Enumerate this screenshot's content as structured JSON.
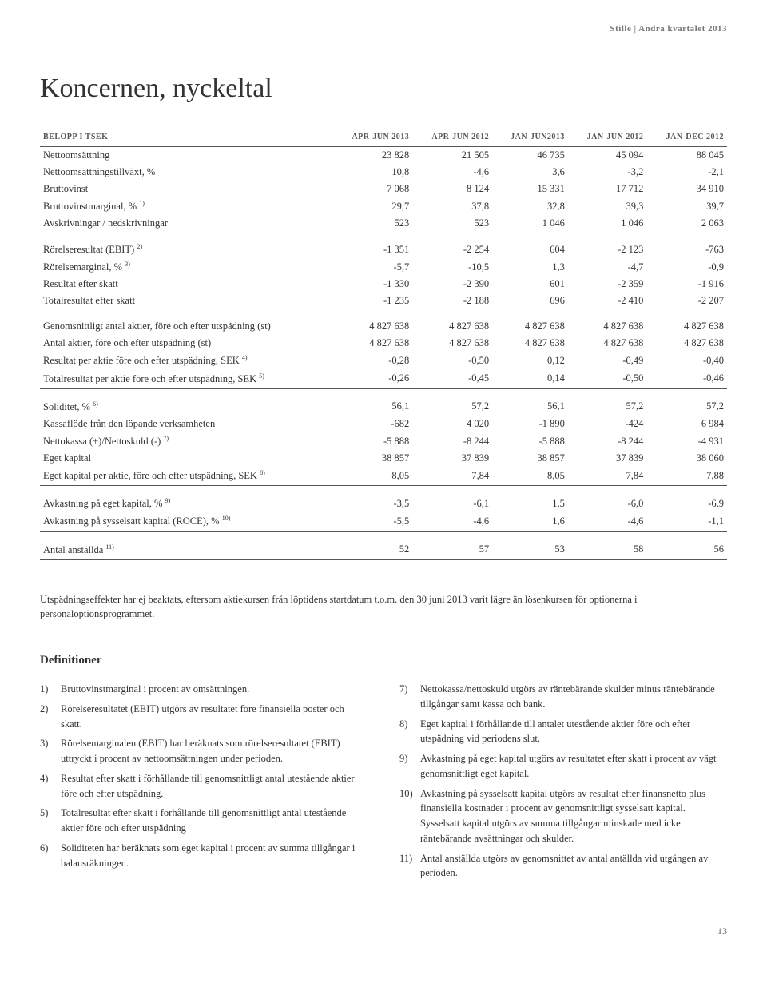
{
  "header": "Stille | Andra kvartalet 2013",
  "title": "Koncernen, nyckeltal",
  "columns": [
    "BELOPP I TSEK",
    "APR-JUN 2013",
    "APR-JUN 2012",
    "JAN-JUN2013",
    "JAN-JUN 2012",
    "JAN-DEC 2012"
  ],
  "rows": [
    {
      "label": "Nettoomsättning",
      "sup": "",
      "v": [
        "23 828",
        "21 505",
        "46 735",
        "45 094",
        "88 045"
      ]
    },
    {
      "label": "Nettoomsättningstillväxt, %",
      "sup": "",
      "v": [
        "10,8",
        "-4,6",
        "3,6",
        "-3,2",
        "-2,1"
      ]
    },
    {
      "label": "Bruttovinst",
      "sup": "",
      "v": [
        "7 068",
        "8 124",
        "15 331",
        "17 712",
        "34 910"
      ]
    },
    {
      "label": "Bruttovinstmarginal, %",
      "sup": "1)",
      "v": [
        "29,7",
        "37,8",
        "32,8",
        "39,3",
        "39,7"
      ]
    },
    {
      "label": "Avskrivningar / nedskrivningar",
      "sup": "",
      "v": [
        "523",
        "523",
        "1 046",
        "1 046",
        "2 063"
      ]
    },
    {
      "label": "Rörelseresultat (EBIT)",
      "sup": "2)",
      "v": [
        "-1 351",
        "-2 254",
        "604",
        "-2 123",
        "-763"
      ],
      "spacer": true
    },
    {
      "label": "Rörelsemarginal, %",
      "sup": "3)",
      "v": [
        "-5,7",
        "-10,5",
        "1,3",
        "-4,7",
        "-0,9"
      ]
    },
    {
      "label": "Resultat efter skatt",
      "sup": "",
      "v": [
        "-1 330",
        "-2 390",
        "601",
        "-2 359",
        "-1 916"
      ]
    },
    {
      "label": "Totalresultat efter skatt",
      "sup": "",
      "v": [
        "-1 235",
        "-2 188",
        "696",
        "-2 410",
        "-2 207"
      ]
    },
    {
      "label": "Genomsnittligt antal aktier, före och efter utspädning (st)",
      "sup": "",
      "v": [
        "4 827 638",
        "4 827 638",
        "4 827 638",
        "4 827 638",
        "4 827 638"
      ],
      "spacer": true
    },
    {
      "label": "Antal aktier, före och efter utspädning (st)",
      "sup": "",
      "v": [
        "4 827 638",
        "4 827 638",
        "4 827 638",
        "4 827 638",
        "4 827 638"
      ]
    },
    {
      "label": "Resultat per aktie före och efter utspädning, SEK",
      "sup": "4)",
      "v": [
        "-0,28",
        "-0,50",
        "0,12",
        "-0,49",
        "-0,40"
      ]
    },
    {
      "label": "Totalresultat per aktie före och efter utspädning, SEK",
      "sup": "5)",
      "v": [
        "-0,26",
        "-0,45",
        "0,14",
        "-0,50",
        "-0,46"
      ],
      "bb": true
    },
    {
      "label": "Soliditet, %",
      "sup": "6)",
      "v": [
        "56,1",
        "57,2",
        "56,1",
        "57,2",
        "57,2"
      ],
      "spacer": true
    },
    {
      "label": "Kassaflöde från den löpande verksamheten",
      "sup": "",
      "v": [
        "-682",
        "4 020",
        "-1 890",
        "-424",
        "6 984"
      ]
    },
    {
      "label": "Nettokassa (+)/Nettoskuld (-)",
      "sup": "7)",
      "v": [
        "-5 888",
        "-8 244",
        "-5 888",
        "-8 244",
        "-4 931"
      ]
    },
    {
      "label": "Eget kapital",
      "sup": "",
      "v": [
        "38 857",
        "37 839",
        "38 857",
        "37 839",
        "38 060"
      ]
    },
    {
      "label": "Eget kapital per aktie, före och efter utspädning, SEK",
      "sup": "8)",
      "v": [
        "8,05",
        "7,84",
        "8,05",
        "7,84",
        "7,88"
      ],
      "bb": true
    },
    {
      "label": "Avkastning på eget kapital, %",
      "sup": "9)",
      "v": [
        "-3,5",
        "-6,1",
        "1,5",
        "-6,0",
        "-6,9"
      ],
      "spacer": true
    },
    {
      "label": "Avkastning på sysselsatt kapital (ROCE), %",
      "sup": "10)",
      "v": [
        "-5,5",
        "-4,6",
        "1,6",
        "-4,6",
        "-1,1"
      ],
      "bb": true
    },
    {
      "label": "Antal anställda",
      "sup": "11)",
      "v": [
        "52",
        "57",
        "53",
        "58",
        "56"
      ],
      "spacer": true,
      "bb": true
    }
  ],
  "note": "Utspädningseffekter har ej beaktats, eftersom aktiekursen från löptidens startdatum t.o.m. den 30 juni 2013 varit lägre än lösenkursen för optionerna i personaloptionsprogrammet.",
  "defs_title": "Definitioner",
  "defs_left": [
    {
      "n": "1)",
      "t": "Bruttovinstmarginal i procent av omsättningen."
    },
    {
      "n": "2)",
      "t": "Rörelseresultatet (EBIT) utgörs av resultatet före finansiella poster och skatt."
    },
    {
      "n": "3)",
      "t": "Rörelsemarginalen (EBIT) har beräknats som rörelseresultatet (EBIT) uttryckt i procent av nettoomsättningen under perioden."
    },
    {
      "n": "4)",
      "t": "Resultat efter skatt i förhållande till genomsnittligt antal utestående aktier före och efter utspädning."
    },
    {
      "n": "5)",
      "t": "Totalresultat efter skatt i förhållande till genomsnittligt antal utestående aktier före och efter utspädning"
    },
    {
      "n": "6)",
      "t": "Soliditeten har beräknats som eget kapital i procent av summa tillgångar i balansräkningen."
    }
  ],
  "defs_right": [
    {
      "n": "7)",
      "t": "Nettokassa/nettoskuld utgörs av räntebärande skulder minus räntebärande tillgångar samt kassa och bank."
    },
    {
      "n": "8)",
      "t": "Eget kapital i förhållande till antalet utestående aktier före och efter utspädning vid periodens slut."
    },
    {
      "n": "9)",
      "t": "Avkastning på eget kapital utgörs av resultatet efter skatt i procent av vägt genomsnittligt eget kapital."
    },
    {
      "n": "10)",
      "t": "Avkastning på sysselsatt kapital utgörs av resultat efter finansnetto plus finansiella kostnader i procent av genomsnittligt sysselsatt kapital. Sysselsatt kapital utgörs av summa tillgångar minskade med icke räntebärande avsättningar och skulder."
    },
    {
      "n": "11)",
      "t": "Antal anställda utgörs av genomsnittet av antal antällda vid utgången av perioden."
    }
  ],
  "page_number": "13"
}
